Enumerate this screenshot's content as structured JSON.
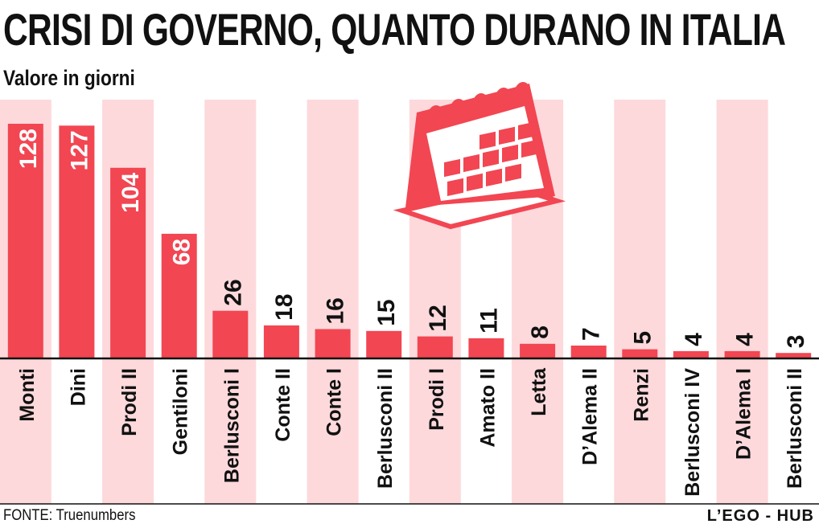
{
  "chart_data": {
    "type": "bar",
    "title": "CRISI DI GOVERNO, QUANTO DURANO IN ITALIA",
    "subtitle": "Valore in giorni",
    "categories": [
      "Monti",
      "Dini",
      "Prodi II",
      "Gentiloni",
      "Berlusconi I",
      "Conte II",
      "Conte I",
      "Berlusconi II",
      "Prodi I",
      "Amato II",
      "Letta",
      "D’Alema II",
      "Renzi",
      "Berlusconi IV",
      "D’Alema I",
      "Berlusconi II"
    ],
    "values": [
      128,
      127,
      104,
      68,
      26,
      18,
      16,
      15,
      12,
      11,
      8,
      7,
      5,
      4,
      4,
      3
    ],
    "xlabel": "",
    "ylabel": "giorni",
    "ylim": [
      0,
      128
    ]
  },
  "colors": {
    "bar": "#f24652",
    "stripe": "#fdd9dc",
    "calendar": "#f24652",
    "text": "#111111"
  },
  "icons": {
    "decoration": "calendar-icon"
  },
  "footer": {
    "source": "FONTE: Truenumbers",
    "brand": "L’EGO - HUB"
  }
}
